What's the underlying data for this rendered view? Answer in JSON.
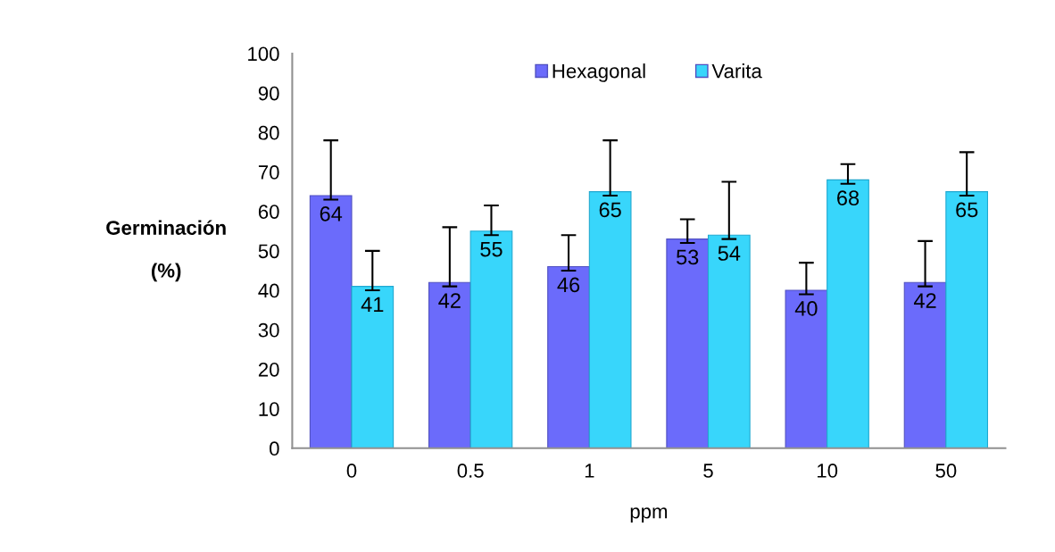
{
  "chart_data": {
    "type": "bar",
    "categories": [
      "0",
      "0.5",
      "1",
      "5",
      "10",
      "50"
    ],
    "xlabel": "ppm",
    "ylabel": "Germinación\n\n(%)",
    "series": [
      {
        "name": "Hexagonal",
        "color": "#6b6bfb",
        "values": [
          64,
          42,
          46,
          53,
          40,
          42
        ],
        "errors": [
          [
            63,
            78
          ],
          [
            41,
            56
          ],
          [
            45,
            54
          ],
          [
            52,
            58
          ],
          [
            39,
            47
          ],
          [
            41,
            52.5
          ]
        ]
      },
      {
        "name": "Varita",
        "color": "#38d6fb",
        "values": [
          41,
          55,
          65,
          54,
          68,
          65
        ],
        "errors": [
          [
            40,
            50
          ],
          [
            54,
            61.5
          ],
          [
            64,
            78
          ],
          [
            53,
            67.5
          ],
          [
            67,
            72
          ],
          [
            64,
            75
          ]
        ]
      }
    ],
    "ylim": [
      0,
      100
    ],
    "yticks": [
      0,
      10,
      20,
      30,
      40,
      50,
      60,
      70,
      80,
      90,
      100
    ],
    "data_labels": true,
    "legend": "top",
    "grid": false
  }
}
